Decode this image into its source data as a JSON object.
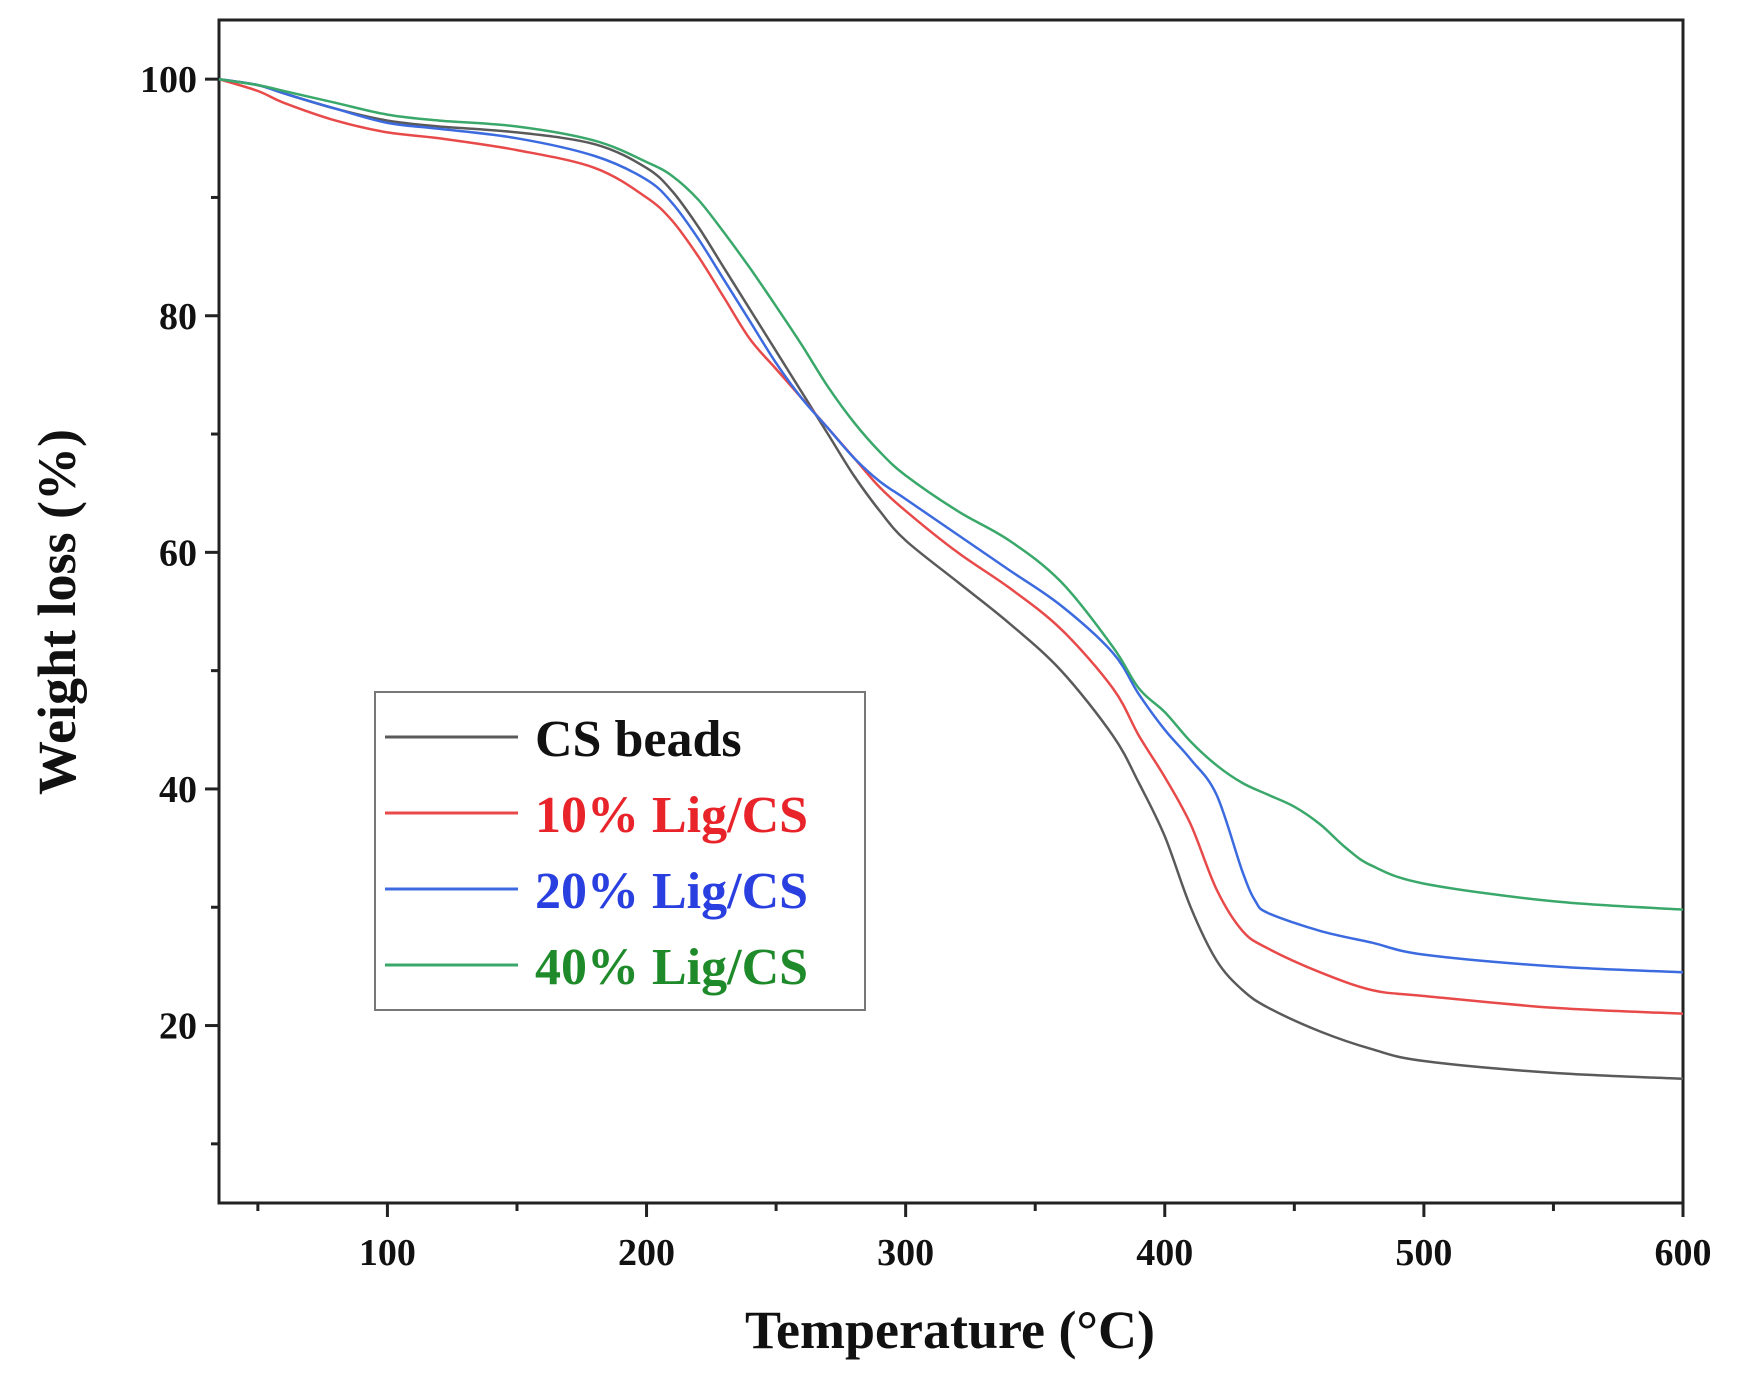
{
  "chart_data": {
    "type": "line",
    "title": "",
    "xlabel": "Temperature (°C)",
    "ylabel": "Weight loss (%)",
    "xlim": [
      35,
      600
    ],
    "ylim": [
      5,
      105
    ],
    "xticks": [
      100,
      200,
      300,
      400,
      500,
      600
    ],
    "xticks_minor": [
      50,
      150,
      250,
      350,
      450,
      550
    ],
    "yticks": [
      20,
      40,
      60,
      80,
      100
    ],
    "yticks_minor": [
      10,
      30,
      50,
      70,
      90
    ],
    "grid": false,
    "legend_position": "center-left",
    "series": [
      {
        "name": "CS beads",
        "color": "#5a5a5a",
        "x": [
          35,
          50,
          60,
          80,
          100,
          120,
          150,
          180,
          200,
          210,
          220,
          230,
          240,
          250,
          260,
          270,
          280,
          290,
          300,
          320,
          340,
          360,
          380,
          390,
          400,
          410,
          420,
          430,
          440,
          460,
          480,
          500,
          550,
          600
        ],
        "y": [
          100,
          99.5,
          98.8,
          97.5,
          96.5,
          96,
          95.5,
          94.5,
          92.5,
          90.5,
          87.5,
          84,
          80.5,
          77,
          73.5,
          70,
          66.5,
          63.5,
          61,
          57.5,
          54,
          50,
          44.5,
          40.5,
          36,
          30,
          25.5,
          23,
          21.5,
          19.5,
          18,
          17,
          16,
          15.5
        ]
      },
      {
        "name": "10% Lig/CS",
        "color": "#e84a4a",
        "x": [
          35,
          50,
          60,
          80,
          100,
          120,
          150,
          180,
          200,
          210,
          220,
          230,
          240,
          250,
          260,
          270,
          280,
          290,
          300,
          320,
          340,
          360,
          380,
          390,
          400,
          410,
          420,
          430,
          440,
          460,
          480,
          500,
          550,
          600
        ],
        "y": [
          100,
          99,
          98,
          96.5,
          95.5,
          95,
          94,
          92.5,
          90,
          88,
          85,
          81.5,
          78,
          75.5,
          73,
          70.5,
          68,
          65.5,
          63.5,
          60,
          57,
          53.5,
          48.5,
          44.5,
          41,
          37,
          31.5,
          28,
          26.5,
          24.5,
          23,
          22.5,
          21.5,
          21
        ]
      },
      {
        "name": "20% Lig/CS",
        "color": "#3c6be0",
        "x": [
          35,
          50,
          60,
          80,
          100,
          120,
          150,
          180,
          200,
          210,
          220,
          230,
          240,
          250,
          260,
          270,
          280,
          290,
          300,
          320,
          340,
          360,
          380,
          390,
          400,
          410,
          420,
          430,
          435,
          440,
          460,
          480,
          500,
          550,
          600
        ],
        "y": [
          100,
          99.5,
          98.8,
          97.5,
          96.3,
          95.8,
          95,
          93.5,
          91.5,
          89.5,
          86.5,
          83,
          79.5,
          76,
          73,
          70.5,
          68,
          66,
          64.5,
          61.5,
          58.5,
          55.5,
          51.5,
          48,
          45,
          42.5,
          39.5,
          33,
          30.5,
          29.5,
          28,
          27,
          26,
          25,
          24.5
        ]
      },
      {
        "name": "40% Lig/CS",
        "color": "#3aa86a",
        "x": [
          35,
          50,
          60,
          80,
          100,
          120,
          150,
          180,
          200,
          210,
          220,
          230,
          240,
          250,
          260,
          270,
          280,
          290,
          300,
          320,
          340,
          360,
          380,
          390,
          400,
          410,
          420,
          430,
          440,
          450,
          460,
          470,
          480,
          500,
          550,
          600
        ],
        "y": [
          100,
          99.5,
          99,
          98,
          97,
          96.5,
          96,
          94.8,
          93,
          91.8,
          89.8,
          87,
          84,
          80.8,
          77.5,
          74,
          71,
          68.5,
          66.5,
          63.5,
          61,
          57.5,
          52,
          48.5,
          46.5,
          44,
          42,
          40.5,
          39.5,
          38.5,
          37,
          35,
          33.5,
          32,
          30.5,
          29.8
        ]
      }
    ]
  },
  "legend": {
    "items": [
      {
        "label": "CS beads",
        "color": "#111111"
      },
      {
        "label": "10% Lig/CS",
        "color": "#e8232a"
      },
      {
        "label": "20% Lig/CS",
        "color": "#2a3fe0"
      },
      {
        "label": "40% Lig/CS",
        "color": "#1e8a2a"
      }
    ]
  }
}
